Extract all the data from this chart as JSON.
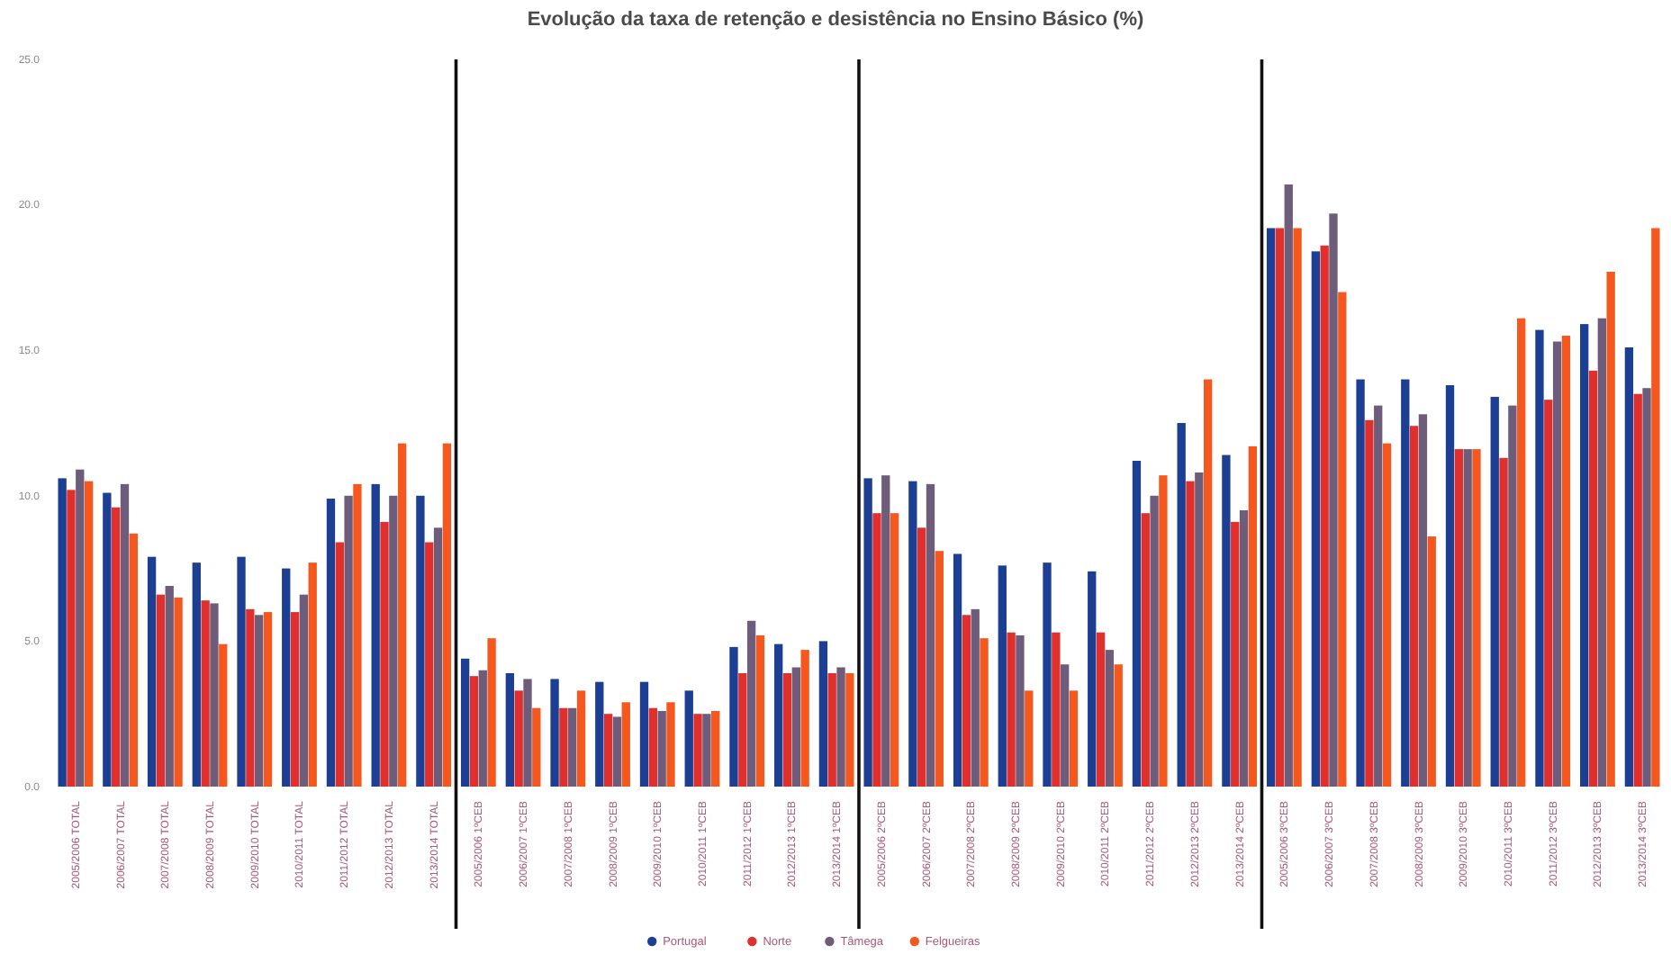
{
  "chart_data": {
    "type": "bar",
    "title": "Evolução da taxa de retenção e desistência no Ensino Básico (%)",
    "categories": [
      "2005/2006 TOTAL",
      "2006/2007 TOTAL",
      "2007/2008 TOTAL",
      "2008/2009 TOTAL",
      "2009/2010 TOTAL",
      "2010/2011 TOTAL",
      "2011/2012 TOTAL",
      "2012/2013 TOTAL",
      "2013/2014 TOTAL",
      "2005/2006 1ºCEB",
      "2006/2007 1ºCEB",
      "2007/2008 1ºCEB",
      "2008/2009 1ºCEB",
      "2009/2010 1ºCEB",
      "2010/2011 1ºCEB",
      "2011/2012 1ºCEB",
      "2012/2013 1ºCEB",
      "2013/2014 1ºCEB",
      "2005/2006 2ºCEB",
      "2006/2007 2ºCEB",
      "2007/2008 2ºCEB",
      "2008/2009 2ºCEB",
      "2009/2010 2ºCEB",
      "2010/2011 2ºCEB",
      "2011/2012 2ºCEB",
      "2012/2013 2ºCEB",
      "2013/2014 2ºCEB",
      "2005/2006 3ºCEB",
      "2006/2007 3ºCEB",
      "2007/2008 3ºCEB",
      "2008/2009 3ºCEB",
      "2009/2010 3ºCEB",
      "2010/2011 3ºCEB",
      "2011/2012 3ºCEB",
      "2012/2013 3ºCEB",
      "2013/2014 3ºCEB"
    ],
    "series": [
      {
        "name": "Portugal",
        "color": "#1c3f94",
        "values": [
          10.6,
          10.1,
          7.9,
          7.7,
          7.9,
          7.5,
          9.9,
          10.4,
          10.0,
          4.4,
          3.9,
          3.7,
          3.6,
          3.6,
          3.3,
          4.8,
          4.9,
          5.0,
          10.6,
          10.5,
          8.0,
          7.6,
          7.7,
          7.4,
          11.2,
          12.5,
          11.4,
          19.2,
          18.4,
          14.0,
          14.0,
          13.8,
          13.4,
          15.7,
          15.9,
          15.1
        ]
      },
      {
        "name": "Norte",
        "color": "#e0302e",
        "values": [
          10.2,
          9.6,
          6.6,
          6.4,
          6.1,
          6.0,
          8.4,
          9.1,
          8.4,
          3.8,
          3.3,
          2.7,
          2.5,
          2.7,
          2.5,
          3.9,
          3.9,
          3.9,
          9.4,
          8.9,
          5.9,
          5.3,
          5.3,
          5.3,
          9.4,
          10.5,
          9.1,
          19.2,
          18.6,
          12.6,
          12.4,
          11.6,
          11.3,
          13.3,
          14.3,
          13.5
        ]
      },
      {
        "name": "Tâmega",
        "color": "#6e5d7a",
        "values": [
          10.9,
          10.4,
          6.9,
          6.3,
          5.9,
          6.6,
          10.0,
          10.0,
          8.9,
          4.0,
          3.7,
          2.7,
          2.4,
          2.6,
          2.5,
          5.7,
          4.1,
          4.1,
          10.7,
          10.4,
          6.1,
          5.2,
          4.2,
          4.7,
          10.0,
          10.8,
          9.5,
          20.7,
          19.7,
          13.1,
          12.8,
          11.6,
          13.1,
          15.3,
          16.1,
          13.7
        ]
      },
      {
        "name": "Felgueiras",
        "color": "#f4581f",
        "values": [
          10.5,
          8.7,
          6.5,
          4.9,
          6.0,
          7.7,
          10.4,
          11.8,
          11.8,
          5.1,
          2.7,
          3.3,
          2.9,
          2.9,
          2.6,
          5.2,
          4.7,
          3.9,
          9.4,
          8.1,
          5.1,
          3.3,
          3.3,
          4.2,
          10.7,
          14.0,
          11.7,
          19.2,
          17.0,
          11.8,
          8.6,
          11.6,
          16.1,
          15.5,
          17.7,
          19.2
        ]
      }
    ],
    "ylim": [
      0,
      25
    ],
    "yticks": [
      {
        "value": 0,
        "label": "0.0"
      },
      {
        "value": 5,
        "label": "5.0"
      },
      {
        "value": 10,
        "label": "10.0"
      },
      {
        "value": 15,
        "label": "15.0"
      },
      {
        "value": 20,
        "label": "20.0"
      },
      {
        "value": 25,
        "label": "25.0"
      }
    ],
    "legend": "bottom"
  }
}
